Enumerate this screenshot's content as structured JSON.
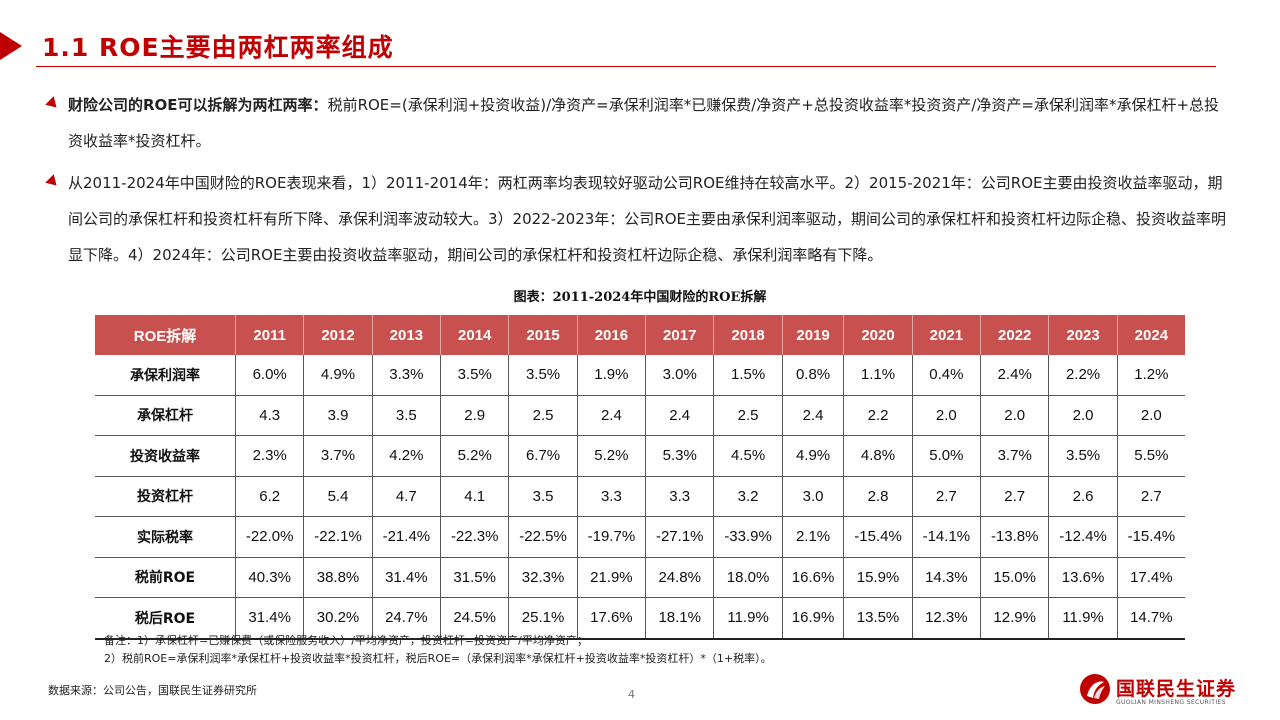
{
  "slide": {
    "title": "1.1 ROE主要由两杠两率组成",
    "bullets": [
      {
        "lead": "财险公司的ROE可以拆解为两杠两率：",
        "text": "税前ROE=(承保利润+投资收益)/净资产=承保利润率*已赚保费/净资产+总投资收益率*投资资产/净资产=承保利润率*承保杠杆+总投资收益率*投资杠杆。"
      },
      {
        "lead": "",
        "text": "从2011-2024年中国财险的ROE表现来看，1）2011-2014年：两杠两率均表现较好驱动公司ROE维持在较高水平。2）2015-2021年：公司ROE主要由投资收益率驱动，期间公司的承保杠杆和投资杠杆有所下降、承保利润率波动较大。3）2022-2023年：公司ROE主要由承保利润率驱动，期间公司的承保杠杆和投资杠杆边际企稳、投资收益率明显下降。4）2024年：公司ROE主要由投资收益率驱动，期间公司的承保杠杆和投资杠杆边际企稳、承保利润率略有下降。"
      }
    ],
    "table_title": "图表：2011-2024年中国财险的ROE拆解",
    "notes": [
      "备注：1）承保杠杆=已赚保费（或保险服务收入）/平均净资产，投资杠杆=投资资产/平均净资产；",
      "2）税前ROE=承保利润率*承保杠杆+投资收益率*投资杠杆，税后ROE=（承保利润率*承保杠杆+投资收益率*投资杠杆）*（1+税率）。"
    ],
    "source": "数据来源：公司公告，国联民生证券研究所",
    "page_number": "4",
    "logo": {
      "name": "国联民生证券",
      "english": "GUOLIAN MINSHENG SECURITIES"
    }
  },
  "colors": {
    "accent": "#c00000",
    "table_header": "#c8504f"
  },
  "chart_data": {
    "type": "table",
    "title": "图表：2011-2024年中国财险的ROE拆解",
    "header_label": "ROE拆解",
    "columns": [
      "2011",
      "2012",
      "2013",
      "2014",
      "2015",
      "2016",
      "2017",
      "2018",
      "2019",
      "2020",
      "2021",
      "2022",
      "2023",
      "2024"
    ],
    "rows": [
      {
        "label": "承保利润率",
        "values": [
          "6.0%",
          "4.9%",
          "3.3%",
          "3.5%",
          "3.5%",
          "1.9%",
          "3.0%",
          "1.5%",
          "0.8%",
          "1.1%",
          "0.4%",
          "2.4%",
          "2.2%",
          "1.2%"
        ]
      },
      {
        "label": "承保杠杆",
        "values": [
          "4.3",
          "3.9",
          "3.5",
          "2.9",
          "2.5",
          "2.4",
          "2.4",
          "2.5",
          "2.4",
          "2.2",
          "2.0",
          "2.0",
          "2.0",
          "2.0"
        ]
      },
      {
        "label": "投资收益率",
        "values": [
          "2.3%",
          "3.7%",
          "4.2%",
          "5.2%",
          "6.7%",
          "5.2%",
          "5.3%",
          "4.5%",
          "4.9%",
          "4.8%",
          "5.0%",
          "3.7%",
          "3.5%",
          "5.5%"
        ]
      },
      {
        "label": "投资杠杆",
        "values": [
          "6.2",
          "5.4",
          "4.7",
          "4.1",
          "3.5",
          "3.3",
          "3.3",
          "3.2",
          "3.0",
          "2.8",
          "2.7",
          "2.7",
          "2.6",
          "2.7"
        ]
      },
      {
        "label": "实际税率",
        "values": [
          "-22.0%",
          "-22.1%",
          "-21.4%",
          "-22.3%",
          "-22.5%",
          "-19.7%",
          "-27.1%",
          "-33.9%",
          "2.1%",
          "-15.4%",
          "-14.1%",
          "-13.8%",
          "-12.4%",
          "-15.4%"
        ]
      },
      {
        "label": "税前ROE",
        "values": [
          "40.3%",
          "38.8%",
          "31.4%",
          "31.5%",
          "32.3%",
          "21.9%",
          "24.8%",
          "18.0%",
          "16.6%",
          "15.9%",
          "14.3%",
          "15.0%",
          "13.6%",
          "17.4%"
        ]
      },
      {
        "label": "税后ROE",
        "values": [
          "31.4%",
          "30.2%",
          "24.7%",
          "24.5%",
          "25.1%",
          "17.6%",
          "18.1%",
          "11.9%",
          "16.9%",
          "13.5%",
          "12.3%",
          "12.9%",
          "11.9%",
          "14.7%"
        ]
      }
    ]
  }
}
